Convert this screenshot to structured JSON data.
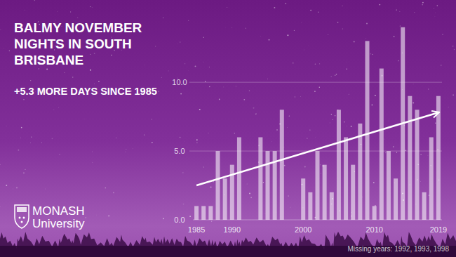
{
  "chart_data": {
    "type": "bar",
    "title": "BALMY NOVEMBER NIGHTS IN SOUTH BRISBANE",
    "subtitle": "+5.3 MORE DAYS SINCE 1985",
    "note": "Missing years: 1992, 1993, 1998",
    "logo_text": [
      "MONASH",
      "University"
    ],
    "x": [
      1985,
      1986,
      1987,
      1988,
      1989,
      1990,
      1991,
      1994,
      1995,
      1996,
      1997,
      1999,
      2000,
      2001,
      2002,
      2003,
      2004,
      2005,
      2006,
      2007,
      2008,
      2009,
      2010,
      2011,
      2012,
      2013,
      2014,
      2015,
      2016,
      2017,
      2018,
      2019
    ],
    "values": [
      1,
      1,
      1,
      5,
      3,
      4,
      6,
      6,
      5,
      5,
      8,
      0,
      3,
      2,
      5,
      4,
      2,
      8,
      6,
      4,
      7,
      13,
      1,
      11,
      5,
      3,
      14,
      9,
      8,
      2,
      6,
      9
    ],
    "color": "#ffffff",
    "xlim": [
      1984.5,
      2019.5
    ],
    "xticks": [
      1985,
      1990,
      2000,
      2010,
      2019
    ],
    "ylim": [
      0,
      14.5
    ],
    "yticks": [
      {
        "value": 0,
        "label": "0.0"
      },
      {
        "value": 5,
        "label": "5.0"
      },
      {
        "value": 10,
        "label": "10.0"
      }
    ],
    "grid": true,
    "trend": {
      "x": [
        1985,
        2019
      ],
      "values": [
        2.5,
        7.8
      ]
    }
  }
}
